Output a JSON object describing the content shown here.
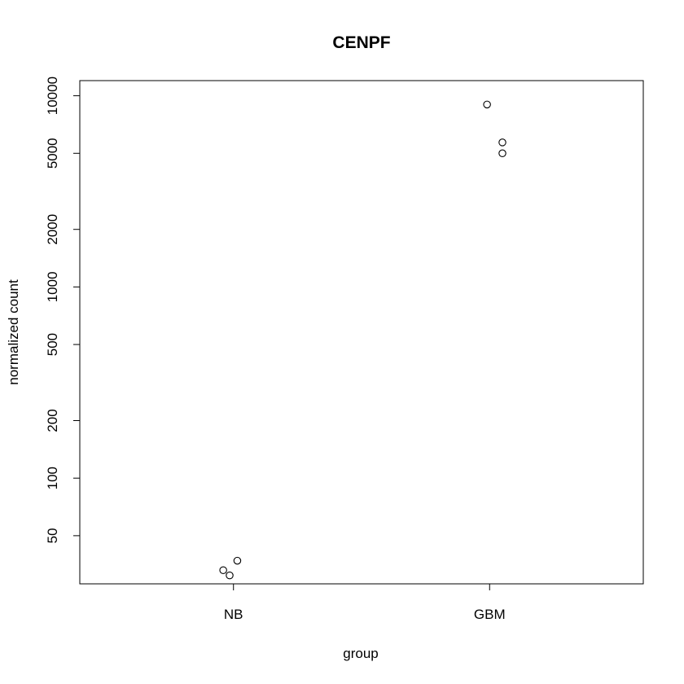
{
  "chart_data": {
    "type": "scatter",
    "title": "CENPF",
    "xlabel": "group",
    "ylabel": "normalized count",
    "y_scale": "log",
    "ylim": [
      28,
      12000
    ],
    "categories": [
      "NB",
      "GBM"
    ],
    "y_ticks": [
      50,
      100,
      200,
      500,
      1000,
      2000,
      5000,
      10000
    ],
    "y_tick_labels": [
      "50",
      "100",
      "200",
      "500",
      "1000",
      "2000",
      "5000",
      "10000"
    ],
    "grid": false,
    "legend": "none",
    "points": [
      {
        "group": "NB",
        "jitter": -0.04,
        "y": 33
      },
      {
        "group": "NB",
        "jitter": -0.015,
        "y": 31
      },
      {
        "group": "NB",
        "jitter": 0.015,
        "y": 37
      },
      {
        "group": "GBM",
        "jitter": -0.01,
        "y": 9000
      },
      {
        "group": "GBM",
        "jitter": 0.05,
        "y": 5700
      },
      {
        "group": "GBM",
        "jitter": 0.05,
        "y": 5000
      }
    ]
  },
  "colors": {
    "point_stroke": "#000000",
    "axis": "#000000",
    "background": "#ffffff"
  }
}
